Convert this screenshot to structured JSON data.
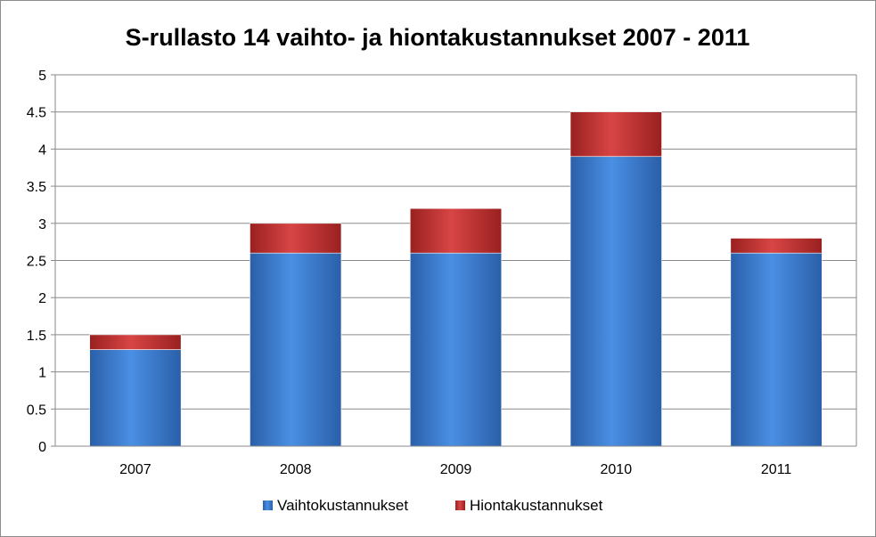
{
  "chart_data": {
    "type": "bar",
    "stacked": true,
    "title": "S-rullasto 14 vaihto- ja hiontakustannukset 2007 - 2011",
    "xlabel": "",
    "ylabel": "",
    "categories": [
      "2007",
      "2008",
      "2009",
      "2010",
      "2011"
    ],
    "series": [
      {
        "name": "Vaihtokustannukset",
        "values": [
          1.3,
          2.6,
          2.6,
          3.9,
          2.6
        ],
        "color": "#3c7fd6"
      },
      {
        "name": "Hiontakustannukset",
        "values": [
          0.2,
          0.4,
          0.6,
          0.6,
          0.2
        ],
        "color": "#c83232"
      }
    ],
    "ylim": [
      0,
      5
    ],
    "yticks": [
      "0",
      "0.5",
      "1",
      "1.5",
      "2",
      "2.5",
      "3",
      "3.5",
      "4",
      "4.5",
      "5"
    ],
    "grid": true,
    "legend": "bottom"
  }
}
